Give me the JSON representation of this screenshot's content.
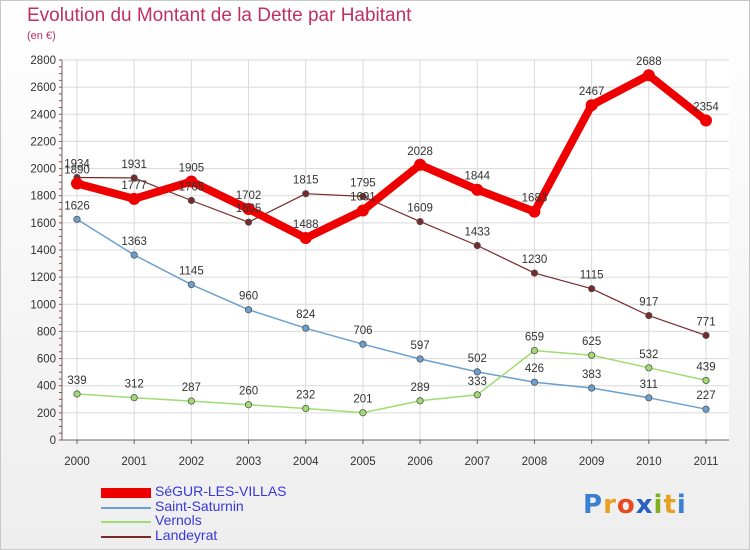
{
  "header": {
    "title": "Evolution du Montant de la Dette par Habitant",
    "subtitle": "(en €)"
  },
  "logo": {
    "letters": [
      "P",
      "r",
      "o",
      "x",
      "i",
      "t",
      "i"
    ],
    "colors": [
      "#3a7fd0",
      "#e8a020",
      "#e64a20",
      "#2a60c0",
      "#80b020",
      "#e8a020",
      "#3a7fd0"
    ]
  },
  "chart_data": {
    "type": "line",
    "title": "Evolution du Montant de la Dette par Habitant",
    "subtitle": "(en €)",
    "x": [
      "2000",
      "2001",
      "2002",
      "2003",
      "2004",
      "2005",
      "2006",
      "2007",
      "2008",
      "2009",
      "2010",
      "2011"
    ],
    "yticks": [
      "0",
      "200",
      "400",
      "600",
      "800",
      "1000",
      "1200",
      "1400",
      "1600",
      "1800",
      "2000",
      "2200",
      "2400",
      "2600",
      "2800"
    ],
    "ylim": [
      0,
      2800
    ],
    "grid": true,
    "legend": "bottom-left",
    "series": [
      {
        "name": "SéGUR-LES-VILLAS",
        "color": "#ee0000",
        "width": 8,
        "values": [
          1890,
          1777,
          1905,
          1702,
          1488,
          1691,
          2028,
          1844,
          1683,
          2467,
          2688,
          2354
        ]
      },
      {
        "name": "Saint-Saturnin",
        "color": "#6aa0d0",
        "width": 1.5,
        "values": [
          1626,
          1363,
          1145,
          960,
          824,
          706,
          597,
          502,
          426,
          383,
          311,
          227
        ]
      },
      {
        "name": "Vernols",
        "color": "#a0dc70",
        "width": 1.5,
        "values": [
          339,
          312,
          287,
          260,
          232,
          201,
          289,
          333,
          659,
          625,
          532,
          439
        ]
      },
      {
        "name": "Landeyrat",
        "color": "#782a2a",
        "width": 1.2,
        "values": [
          1934,
          1931,
          1765,
          1605,
          1815,
          1795,
          1609,
          1433,
          1230,
          1115,
          917,
          771
        ]
      }
    ],
    "labels": [
      {
        "series": 0,
        "values": [
          "1890",
          "1777",
          "1905",
          "1702",
          "1488",
          "1691",
          "2028",
          "1844",
          "1683",
          "2467",
          "2688",
          "2354"
        ]
      },
      {
        "series": 1,
        "values": [
          "1626",
          "1363",
          "1145",
          "960",
          "824",
          "706",
          "597",
          "502",
          "426",
          "383",
          "311",
          "227"
        ]
      },
      {
        "series": 2,
        "values": [
          "339",
          "312",
          "287",
          "260",
          "232",
          "201",
          "289",
          "333",
          "659",
          "625",
          "532",
          "439"
        ]
      },
      {
        "series": 3,
        "values": [
          "1934",
          "1931",
          "1765",
          "1605",
          "1815",
          "1795",
          "1609",
          "1433",
          "1230",
          "1115",
          "917",
          "771"
        ]
      }
    ]
  }
}
